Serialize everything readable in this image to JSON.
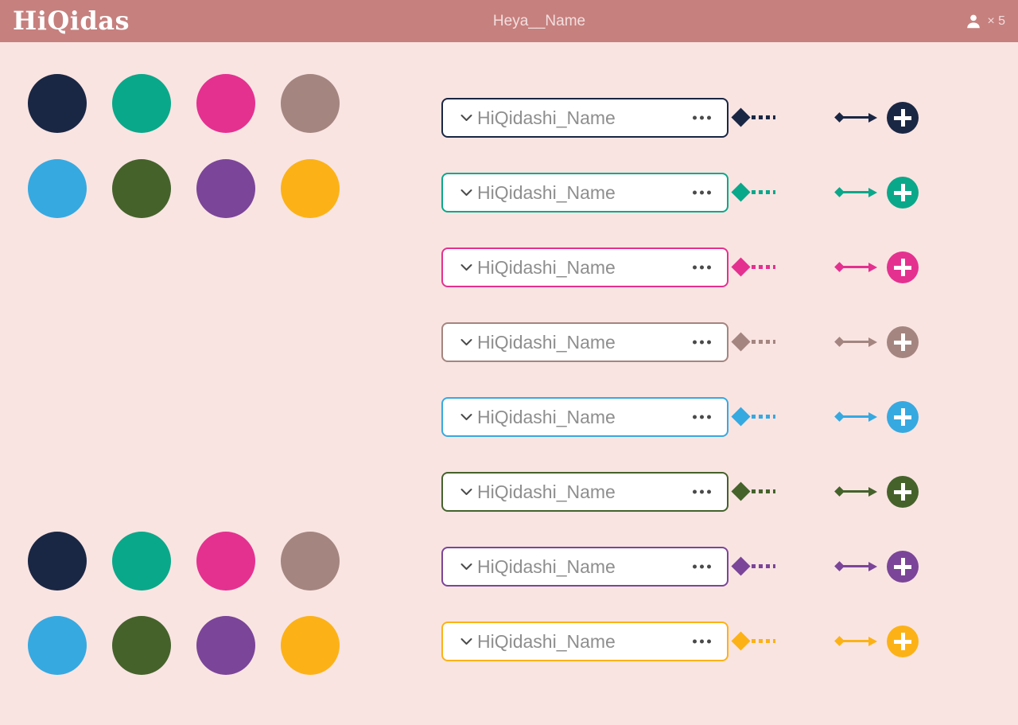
{
  "background": "#f9e4e2",
  "header": {
    "bg": "#c6807e",
    "logo": "HiQidas",
    "title": "Heya__Name",
    "user_icon": "person-icon",
    "user_count": "× 5"
  },
  "palette": {
    "navy": "#1a2744",
    "teal": "#0aa88a",
    "pink": "#e43190",
    "mauve": "#a48580",
    "blue": "#36a9e1",
    "olive": "#45622b",
    "purple": "#7b4599",
    "amber": "#fcb217"
  },
  "swatch_grids": [
    {
      "position": "top-left",
      "colors": [
        "navy",
        "teal",
        "pink",
        "mauve",
        "blue",
        "olive",
        "purple",
        "amber"
      ]
    },
    {
      "position": "bottom-left",
      "colors": [
        "navy",
        "teal",
        "pink",
        "mauve",
        "blue",
        "olive",
        "purple",
        "amber"
      ]
    }
  ],
  "dropdown": {
    "chevron_icon": "chevron-down-icon",
    "menu_icon": "ellipsis-icon",
    "text_color": "#8e8e8e"
  },
  "rows": [
    {
      "label": "HiQidashi_Name",
      "color_name": "navy",
      "color": "#1a2744"
    },
    {
      "label": "HiQidashi_Name",
      "color_name": "teal",
      "color": "#0aa88a"
    },
    {
      "label": "HiQidashi_Name",
      "color_name": "pink",
      "color": "#e43190"
    },
    {
      "label": "HiQidashi_Name",
      "color_name": "mauve",
      "color": "#a48580"
    },
    {
      "label": "HiQidashi_Name",
      "color_name": "blue",
      "color": "#36a9e1"
    },
    {
      "label": "HiQidashi_Name",
      "color_name": "olive",
      "color": "#45622b"
    },
    {
      "label": "HiQidashi_Name",
      "color_name": "purple",
      "color": "#7b4599"
    },
    {
      "label": "HiQidashi_Name",
      "color_name": "amber",
      "color": "#fcb217"
    }
  ]
}
